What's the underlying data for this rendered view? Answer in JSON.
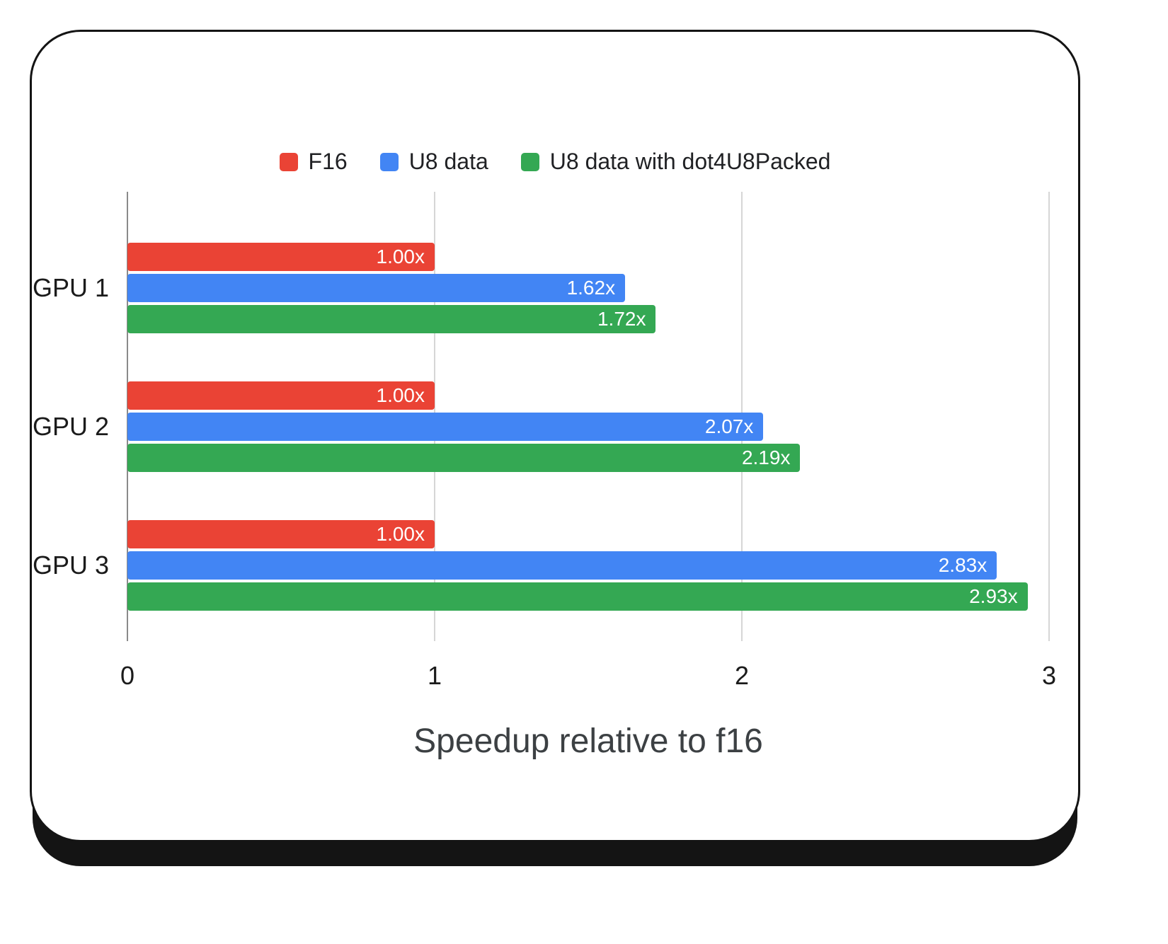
{
  "chart_data": {
    "type": "bar",
    "orientation": "horizontal",
    "title": "",
    "xlabel": "Speedup relative to f16",
    "ylabel": "",
    "categories": [
      "GPU 1",
      "GPU 2",
      "GPU 3"
    ],
    "series": [
      {
        "name": "F16",
        "color": "#EA4335",
        "values": [
          1.0,
          1.0,
          1.0
        ],
        "labels": [
          "1.00x",
          "1.00x",
          "1.00x"
        ]
      },
      {
        "name": "U8 data",
        "color": "#4285F4",
        "values": [
          1.62,
          2.07,
          2.83
        ],
        "labels": [
          "1.62x",
          "2.07x",
          "2.83x"
        ]
      },
      {
        "name": "U8 data with dot4U8Packed",
        "color": "#34A853",
        "values": [
          1.72,
          2.19,
          2.93
        ],
        "labels": [
          "1.72x",
          "2.19x",
          "2.93x"
        ]
      }
    ],
    "x_ticks": [
      "0",
      "1",
      "2",
      "3"
    ],
    "xlim": [
      0,
      3
    ],
    "grid": true,
    "legend_position": "top",
    "value_label_color": "#ffffff"
  }
}
